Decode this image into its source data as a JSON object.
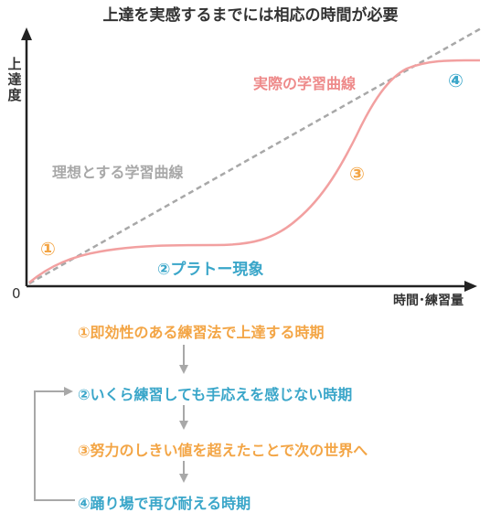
{
  "title": "上達を実感するまでには相応の時間が必要",
  "axes": {
    "y_label": "上達度",
    "x_label": "時間･練習量",
    "origin_label": "0"
  },
  "curves": {
    "ideal_label": "理想とする学習曲線",
    "actual_label": "実際の学習曲線"
  },
  "markers": {
    "m1": "①",
    "plateau": "②プラトー現象",
    "m3": "③",
    "m4": "④"
  },
  "steps": [
    "①即効性のある練習法で上達する時期",
    "②いくら練習しても手応えを感じない時期",
    "③努力のしきい値を超えたことで次の世界へ",
    "④踊り場で再び耐える時期"
  ],
  "colors": {
    "orange": "#f3a545",
    "blue": "#3aa6c9",
    "pink": "#ee8a8a",
    "gray": "#a8a8a8",
    "axis": "#222222"
  }
}
